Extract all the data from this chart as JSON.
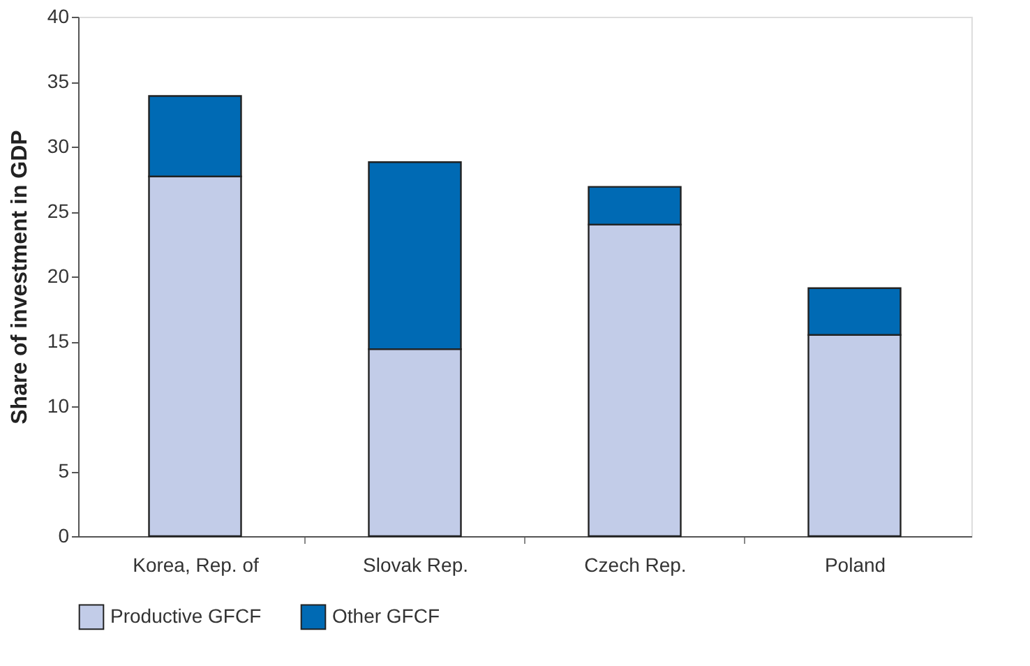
{
  "chart_data": {
    "type": "bar",
    "stacked": true,
    "ylabel": "Share of investment in GDP",
    "categories": [
      "Korea, Rep. of",
      "Slovak Rep.",
      "Czech Rep.",
      "Poland"
    ],
    "series": [
      {
        "name": "Productive GFCF",
        "color": "#c2cce8",
        "values": [
          27.7,
          14.4,
          24.0,
          15.5
        ]
      },
      {
        "name": "Other GFCF",
        "color": "#006ab4",
        "values": [
          6.2,
          14.4,
          2.9,
          3.6
        ]
      }
    ],
    "ylim": [
      0,
      40
    ],
    "yticks": [
      0,
      5,
      10,
      15,
      20,
      25,
      30,
      35,
      40
    ],
    "grid": false,
    "legend": "bottom"
  }
}
